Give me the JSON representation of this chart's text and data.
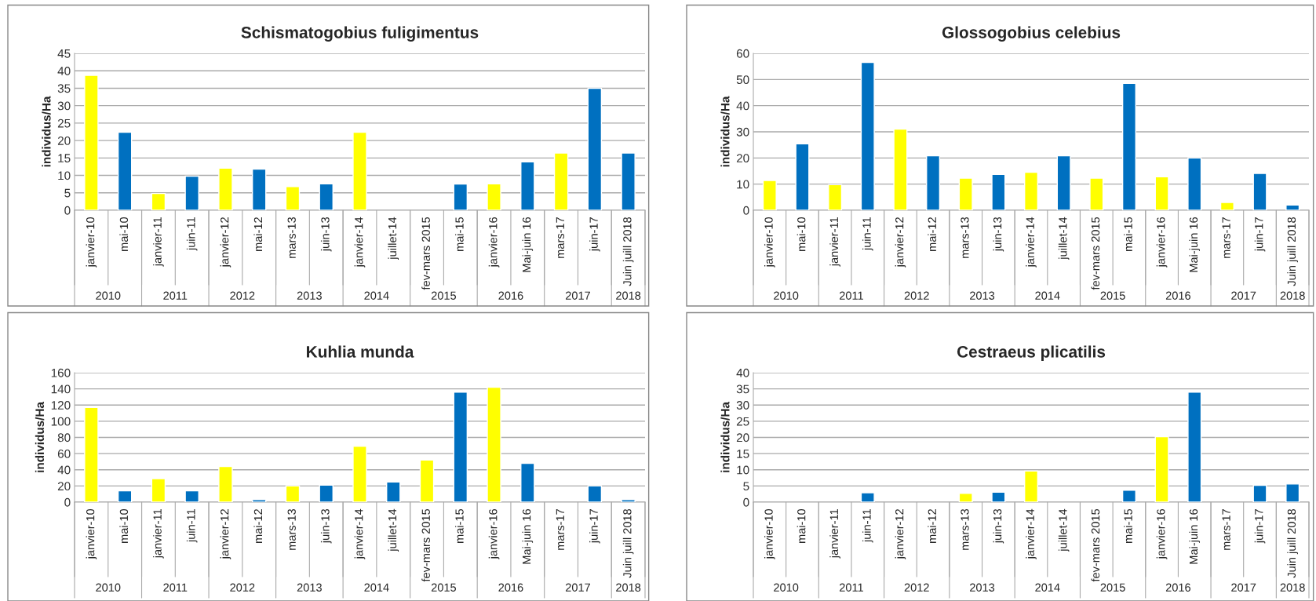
{
  "chart_data": [
    {
      "type": "bar",
      "title": "Schismatogobius fuligimentus",
      "ylabel": "individus/Ha",
      "categories": [
        "janvier-10",
        "mai-10",
        "janvier-11",
        "juin-11",
        "janvier-12",
        "mai-12",
        "mars-13",
        "juin-13",
        "janvier-14",
        "juillet-14",
        "fev-mars 2015",
        "mai-15",
        "janvier-16",
        "Mai-juin 16",
        "mars-17",
        "juin-17",
        "Juin juill 2018"
      ],
      "values": [
        38.7,
        22.4,
        4.8,
        9.8,
        12.1,
        11.8,
        6.8,
        7.6,
        22.4,
        null,
        null,
        7.5,
        7.6,
        13.9,
        16.4,
        35,
        16.4
      ],
      "colors": [
        "#ffff00",
        "#0070c0",
        "#ffff00",
        "#0070c0",
        "#ffff00",
        "#0070c0",
        "#ffff00",
        "#0070c0",
        "#ffff00",
        "#0070c0",
        "#ffff00",
        "#0070c0",
        "#ffff00",
        "#0070c0",
        "#ffff00",
        "#0070c0",
        "#0070c0"
      ],
      "ylim": [
        0,
        45
      ],
      "yticks": [
        0,
        5,
        10,
        15,
        20,
        25,
        30,
        35,
        40,
        45
      ],
      "grid": "y",
      "annotations": [
        "2010",
        "2011",
        "2012",
        "2013",
        "2014",
        "2015",
        "2016",
        "2017",
        "2018"
      ]
    },
    {
      "type": "bar",
      "title": "Glossogobius celebius",
      "ylabel": "individus/Ha",
      "categories": [
        "janvier-10",
        "mai-10",
        "janvier-11",
        "juin-11",
        "janvier-12",
        "mai-12",
        "mars-13",
        "juin-13",
        "janvier-14",
        "juillet-14",
        "fev-mars 2015",
        "mai-15",
        "janvier-16",
        "Mai-juin 16",
        "mars-17",
        "juin-17",
        "Juin juill 2018"
      ],
      "values": [
        11.4,
        25.4,
        9.8,
        56.5,
        31,
        20.8,
        12.3,
        13.7,
        14.5,
        20.8,
        12.3,
        48.5,
        12.8,
        20,
        3,
        14.1,
        2
      ],
      "colors": [
        "#ffff00",
        "#0070c0",
        "#ffff00",
        "#0070c0",
        "#ffff00",
        "#0070c0",
        "#ffff00",
        "#0070c0",
        "#ffff00",
        "#0070c0",
        "#ffff00",
        "#0070c0",
        "#ffff00",
        "#0070c0",
        "#ffff00",
        "#0070c0",
        "#0070c0"
      ],
      "ylim": [
        0,
        60
      ],
      "yticks": [
        0,
        10,
        20,
        30,
        40,
        50,
        60
      ],
      "grid": "y",
      "annotations": [
        "2010",
        "2011",
        "2012",
        "2013",
        "2014",
        "2015",
        "2016",
        "2017",
        "2018"
      ]
    },
    {
      "type": "bar",
      "title": "Kuhlia munda",
      "ylabel": "individus/Ha",
      "categories": [
        "janvier-10",
        "mai-10",
        "janvier-11",
        "juin-11",
        "janvier-12",
        "mai-12",
        "mars-13",
        "juin-13",
        "janvier-14",
        "juillet-14",
        "fev-mars 2015",
        "mai-15",
        "janvier-16",
        "Mai-juin 16",
        "mars-17",
        "juin-17",
        "Juin juill 2018"
      ],
      "values": [
        117,
        14,
        29,
        14,
        44,
        3,
        20,
        21,
        69,
        25,
        52,
        136,
        142,
        48,
        null,
        20,
        3
      ],
      "colors": [
        "#ffff00",
        "#0070c0",
        "#ffff00",
        "#0070c0",
        "#ffff00",
        "#0070c0",
        "#ffff00",
        "#0070c0",
        "#ffff00",
        "#0070c0",
        "#ffff00",
        "#0070c0",
        "#ffff00",
        "#0070c0",
        "#ffff00",
        "#0070c0",
        "#0070c0"
      ],
      "ylim": [
        0,
        160
      ],
      "yticks": [
        0,
        20,
        40,
        60,
        80,
        100,
        120,
        140,
        160
      ],
      "grid": "y",
      "annotations": [
        "2010",
        "2011",
        "2012",
        "2013",
        "2014",
        "2015",
        "2016",
        "2017",
        "2018"
      ]
    },
    {
      "type": "bar",
      "title": "Cestraeus plicatilis",
      "ylabel": "individus/Ha",
      "categories": [
        "janvier-10",
        "mai-10",
        "janvier-11",
        "juin-11",
        "janvier-12",
        "mai-12",
        "mars-13",
        "juin-13",
        "janvier-14",
        "juillet-14",
        "fev-mars 2015",
        "mai-15",
        "janvier-16",
        "Mai-juin 16",
        "mars-17",
        "juin-17",
        "Juin juill 2018"
      ],
      "values": [
        null,
        null,
        null,
        2.9,
        null,
        null,
        2.7,
        3.1,
        9.6,
        null,
        null,
        3.7,
        20.2,
        34,
        null,
        5.2,
        5.6
      ],
      "colors": [
        "#ffff00",
        "#0070c0",
        "#ffff00",
        "#0070c0",
        "#ffff00",
        "#0070c0",
        "#ffff00",
        "#0070c0",
        "#ffff00",
        "#0070c0",
        "#ffff00",
        "#0070c0",
        "#ffff00",
        "#0070c0",
        "#ffff00",
        "#0070c0",
        "#0070c0"
      ],
      "ylim": [
        0,
        40
      ],
      "yticks": [
        0,
        5,
        10,
        15,
        20,
        25,
        30,
        35,
        40
      ],
      "grid": "y",
      "annotations": [
        "2010",
        "2011",
        "2012",
        "2013",
        "2014",
        "2015",
        "2016",
        "2017",
        "2018"
      ]
    }
  ]
}
